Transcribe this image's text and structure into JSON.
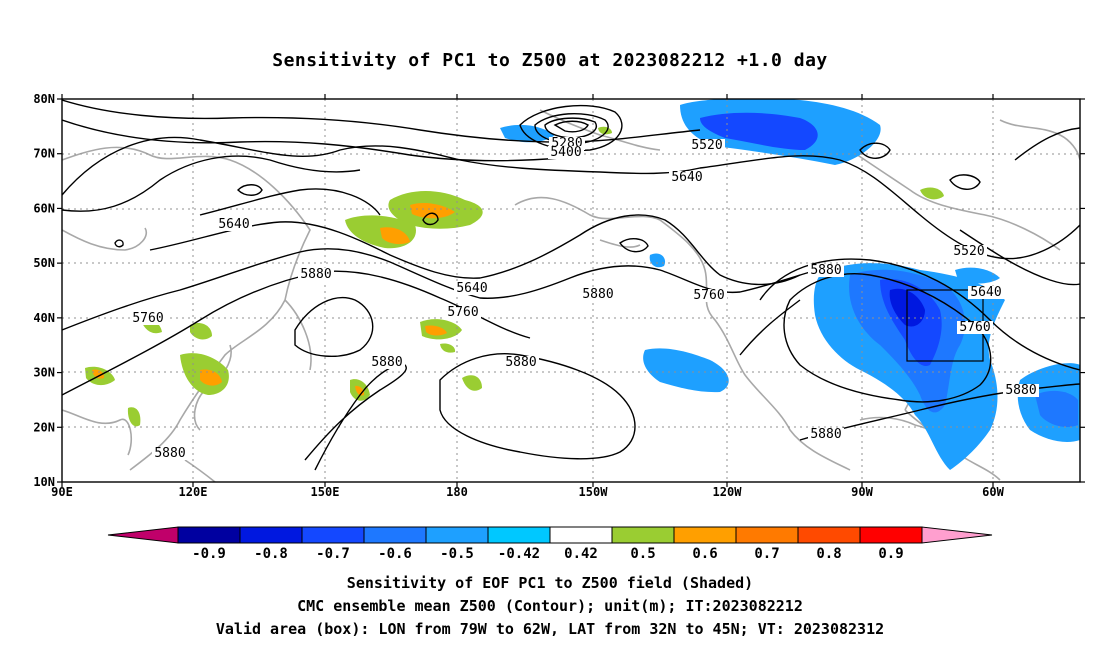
{
  "title": "Sensitivity of PC1 to Z500 at 2023082212 +1.0 day",
  "map": {
    "lat_ticks": [
      "10N",
      "20N",
      "30N",
      "40N",
      "50N",
      "60N",
      "70N",
      "80N"
    ],
    "lon_ticks": [
      "90E",
      "120E",
      "150E",
      "180",
      "150W",
      "120W",
      "90W",
      "60W"
    ],
    "contour_labels": [
      "5280",
      "5400",
      "5520",
      "5640",
      "5640",
      "5640",
      "5640",
      "5760",
      "5760",
      "5760",
      "5760",
      "5880",
      "5880",
      "5880",
      "5880",
      "5880",
      "5880",
      "5880",
      "5880",
      "5520"
    ],
    "valid_box": {
      "lon_from": "79W",
      "lon_to": "62W",
      "lat_from": "32N",
      "lat_to": "45N"
    }
  },
  "colorbar": {
    "labels": [
      "-0.9",
      "-0.8",
      "-0.7",
      "-0.6",
      "-0.5",
      "-0.42",
      "0.42",
      "0.5",
      "0.6",
      "0.7",
      "0.8",
      "0.9"
    ],
    "colors": [
      "#0000a0",
      "#0018e0",
      "#1448ff",
      "#1e78ff",
      "#1ea0ff",
      "#00c8ff",
      "#ffffff",
      "#9acd32",
      "#ff9f00",
      "#ff7a00",
      "#ff4a00",
      "#ff0000"
    ],
    "under_color": "#c0006a",
    "over_color": "#ff9fcf"
  },
  "footer": {
    "line1": "Sensitivity of EOF PC1 to Z500 field (Shaded)",
    "line2": "CMC ensemble mean Z500 (Contour); unit(m); IT:2023082212",
    "line3": "Valid area (box): LON from 79W to 62W, LAT from 32N to 45N; VT: 2023082312"
  }
}
